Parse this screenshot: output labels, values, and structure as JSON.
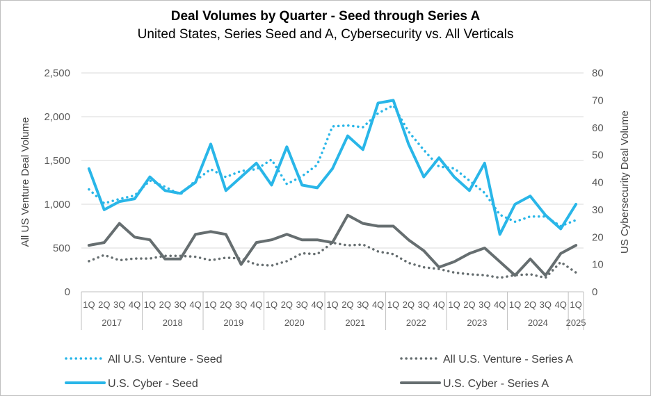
{
  "chart_data": {
    "type": "line",
    "title": "Deal Volumes by Quarter - Seed through Series A",
    "subtitle": "United States, Series Seed and A, Cybersecurity vs. All Verticals",
    "ylabel_left": "All US Venture Deal Volume",
    "ylabel_right": "US Cybersecurity Deal Volume",
    "ylim_left": [
      0,
      2500
    ],
    "ylim_right": [
      0,
      80
    ],
    "yticks_left": [
      "0",
      "500",
      "1,000",
      "1,500",
      "2,000",
      "2,500"
    ],
    "yticks_right": [
      "0",
      "10",
      "20",
      "30",
      "40",
      "50",
      "60",
      "70",
      "80"
    ],
    "quarter_labels": [
      "1Q",
      "2Q",
      "3Q",
      "4Q",
      "1Q",
      "2Q",
      "3Q",
      "4Q",
      "1Q",
      "2Q",
      "3Q",
      "4Q",
      "1Q",
      "2Q",
      "3Q",
      "4Q",
      "1Q",
      "2Q",
      "3Q",
      "4Q",
      "1Q",
      "2Q",
      "3Q",
      "4Q",
      "1Q",
      "2Q",
      "3Q",
      "4Q",
      "1Q",
      "2Q",
      "3Q",
      "4Q",
      "1Q"
    ],
    "years": [
      "2017",
      "2018",
      "2019",
      "2020",
      "2021",
      "2022",
      "2023",
      "2024",
      "2025"
    ],
    "grid": "horizontal",
    "legend": "bottom",
    "series": [
      {
        "name": "All U.S. Venture - Seed",
        "axis": "left",
        "style": "dotted",
        "color": "#29b6e8",
        "values": [
          1170,
          1010,
          1060,
          1100,
          1270,
          1200,
          1110,
          1270,
          1400,
          1310,
          1380,
          1400,
          1510,
          1230,
          1320,
          1450,
          1890,
          1900,
          1880,
          2040,
          2130,
          1830,
          1620,
          1430,
          1410,
          1270,
          1130,
          880,
          800,
          860,
          860,
          750,
          820
        ]
      },
      {
        "name": "All U.S. Venture - Series A",
        "axis": "left",
        "style": "dotted",
        "color": "#666e70",
        "values": [
          350,
          420,
          360,
          380,
          380,
          410,
          410,
          400,
          360,
          390,
          380,
          310,
          300,
          350,
          440,
          430,
          560,
          530,
          540,
          460,
          430,
          330,
          280,
          260,
          220,
          200,
          190,
          160,
          190,
          200,
          160,
          340,
          220
        ]
      },
      {
        "name": "U.S. Cyber - Seed",
        "axis": "right",
        "style": "solid",
        "color": "#29b6e8",
        "values": [
          45,
          30,
          33,
          34,
          42,
          37,
          36,
          40,
          54,
          37,
          42,
          47,
          39,
          53,
          39,
          38,
          45,
          57,
          52,
          69,
          70,
          54,
          42,
          49,
          42,
          37,
          47,
          21,
          32,
          35,
          28,
          23,
          32
        ]
      },
      {
        "name": "U.S. Cyber - Series A",
        "axis": "right",
        "style": "solid",
        "color": "#666e70",
        "values": [
          17,
          18,
          25,
          20,
          19,
          12,
          12,
          21,
          22,
          21,
          10,
          18,
          19,
          21,
          19,
          19,
          18,
          28,
          25,
          24,
          24,
          19,
          15,
          9,
          11,
          14,
          16,
          11,
          6,
          12,
          6,
          14,
          17
        ]
      }
    ]
  }
}
